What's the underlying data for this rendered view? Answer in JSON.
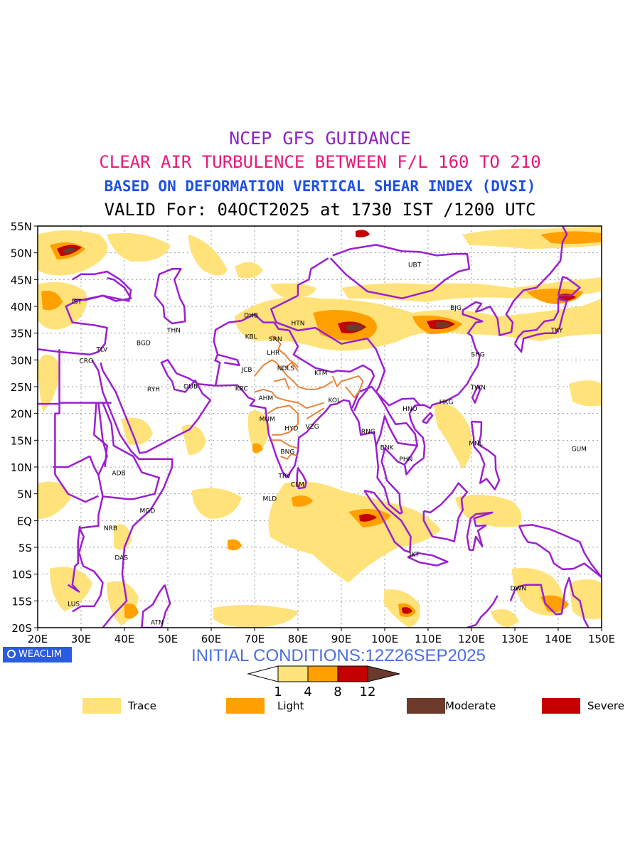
{
  "titles": {
    "line1": "NCEP GFS GUIDANCE",
    "line2": "CLEAR AIR TURBULENCE BETWEEN F/L 160 TO 210",
    "line3": "BASED ON DEFORMATION VERTICAL SHEAR INDEX (DVSI)",
    "line4": "VALID For: 04OCT2025 at 1730 IST /1200 UTC"
  },
  "colors": {
    "line1": "#8e24c8",
    "line2": "#e8187a",
    "line3": "#1e50e6",
    "line4": "#000000",
    "boundary": "#9b1fd0",
    "india_state": "#e8843a",
    "trace": "#ffe27a",
    "light": "#ffa000",
    "moderate": "#6b3a2a",
    "severe": "#c40000"
  },
  "map": {
    "lon_range": [
      20,
      150
    ],
    "lat_range": [
      -20,
      55
    ],
    "x_ticks": [
      "20E",
      "30E",
      "40E",
      "50E",
      "60E",
      "70E",
      "80E",
      "90E",
      "100E",
      "110E",
      "120E",
      "130E",
      "140E",
      "150E"
    ],
    "y_ticks": [
      "55N",
      "50N",
      "45N",
      "40N",
      "35N",
      "30N",
      "25N",
      "20N",
      "15N",
      "10N",
      "5N",
      "EQ",
      "5S",
      "10S",
      "15S",
      "20S"
    ],
    "stations": [
      {
        "code": "UBT",
        "lon": 106.9,
        "lat": 47.9
      },
      {
        "code": "IST",
        "lon": 29.0,
        "lat": 41.0
      },
      {
        "code": "BJG",
        "lon": 116.4,
        "lat": 39.9
      },
      {
        "code": "DHB",
        "lon": 69.2,
        "lat": 38.5
      },
      {
        "code": "HTN",
        "lon": 80.0,
        "lat": 37.0
      },
      {
        "code": "THN",
        "lon": 51.4,
        "lat": 35.7
      },
      {
        "code": "KBL",
        "lon": 69.2,
        "lat": 34.5
      },
      {
        "code": "SRN",
        "lon": 74.8,
        "lat": 34.0
      },
      {
        "code": "TKY",
        "lon": 139.7,
        "lat": 35.7
      },
      {
        "code": "BGD",
        "lon": 44.4,
        "lat": 33.3
      },
      {
        "code": "TLV",
        "lon": 34.8,
        "lat": 32.1
      },
      {
        "code": "LHR",
        "lon": 74.3,
        "lat": 31.5
      },
      {
        "code": "SHG",
        "lon": 121.5,
        "lat": 31.2
      },
      {
        "code": "CRO",
        "lon": 31.2,
        "lat": 30.0
      },
      {
        "code": "NDLS",
        "lon": 77.2,
        "lat": 28.6
      },
      {
        "code": "JCB",
        "lon": 68.2,
        "lat": 28.3
      },
      {
        "code": "KTM",
        "lon": 85.3,
        "lat": 27.7
      },
      {
        "code": "RYH",
        "lon": 46.7,
        "lat": 24.7
      },
      {
        "code": "DUB",
        "lon": 55.3,
        "lat": 25.2
      },
      {
        "code": "TWN",
        "lon": 121.5,
        "lat": 25.0
      },
      {
        "code": "KRC",
        "lon": 67.0,
        "lat": 24.8
      },
      {
        "code": "AHM",
        "lon": 72.6,
        "lat": 23.0
      },
      {
        "code": "KOL",
        "lon": 88.4,
        "lat": 22.6
      },
      {
        "code": "HKG",
        "lon": 114.2,
        "lat": 22.3
      },
      {
        "code": "HNO",
        "lon": 105.8,
        "lat": 21.0
      },
      {
        "code": "MUM",
        "lon": 72.9,
        "lat": 19.1
      },
      {
        "code": "HYD",
        "lon": 78.5,
        "lat": 17.4
      },
      {
        "code": "VZG",
        "lon": 83.3,
        "lat": 17.7
      },
      {
        "code": "RNG",
        "lon": 96.2,
        "lat": 16.8
      },
      {
        "code": "MNL",
        "lon": 121.0,
        "lat": 14.6
      },
      {
        "code": "GUM",
        "lon": 144.8,
        "lat": 13.5
      },
      {
        "code": "BNK",
        "lon": 100.5,
        "lat": 13.8
      },
      {
        "code": "BNG",
        "lon": 77.6,
        "lat": 13.0
      },
      {
        "code": "PHN",
        "lon": 104.9,
        "lat": 11.6
      },
      {
        "code": "ADB",
        "lon": 38.7,
        "lat": 9.0
      },
      {
        "code": "TRV",
        "lon": 76.9,
        "lat": 8.5
      },
      {
        "code": "CLM",
        "lon": 79.9,
        "lat": 6.9
      },
      {
        "code": "MLD",
        "lon": 73.5,
        "lat": 4.2
      },
      {
        "code": "MGD",
        "lon": 45.3,
        "lat": 2.0
      },
      {
        "code": "NRB",
        "lon": 36.8,
        "lat": -1.3
      },
      {
        "code": "DAS",
        "lon": 39.3,
        "lat": -6.8
      },
      {
        "code": "JKT",
        "lon": 106.8,
        "lat": -6.2
      },
      {
        "code": "DWN",
        "lon": 130.8,
        "lat": -12.5
      },
      {
        "code": "LUS",
        "lon": 28.3,
        "lat": -15.4
      },
      {
        "code": "ATN",
        "lon": 47.5,
        "lat": -18.9
      }
    ]
  },
  "badge": "WEACLIM",
  "initial_conditions": "INITIAL CONDITIONS:12Z26SEP2025",
  "colorbar": {
    "labels": [
      "1",
      "4",
      "8",
      "12"
    ]
  },
  "legend": [
    {
      "label": "Trace",
      "color": "#ffe27a"
    },
    {
      "label": "Light",
      "color": "#ffa000"
    },
    {
      "label": "Moderate",
      "color": "#6b3a2a"
    },
    {
      "label": "Severe",
      "color": "#c40000"
    }
  ]
}
